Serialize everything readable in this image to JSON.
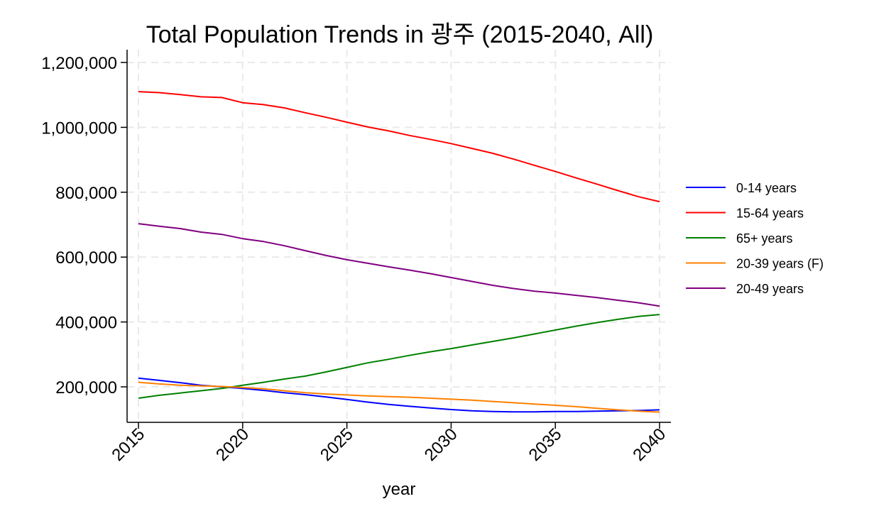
{
  "chart_data": {
    "type": "line",
    "title": "Total Population Trends in 광주 (2015-2040, All)",
    "xlabel": "year",
    "ylabel": "",
    "xlim": [
      2015,
      2040
    ],
    "ylim": [
      100000,
      1230000
    ],
    "xticks": [
      2015,
      2020,
      2025,
      2030,
      2035,
      2040
    ],
    "xtick_labels": [
      "2015",
      "2020",
      "2025",
      "2030",
      "2035",
      "2040"
    ],
    "yticks": [
      200000,
      400000,
      600000,
      800000,
      1000000,
      1200000
    ],
    "ytick_labels": [
      "200,000",
      "400,000",
      "600,000",
      "800,000",
      "1,000,000",
      "1,200,000"
    ],
    "grid": true,
    "legend_position": "right",
    "x": [
      2015,
      2016,
      2017,
      2018,
      2019,
      2020,
      2021,
      2022,
      2023,
      2024,
      2025,
      2026,
      2027,
      2028,
      2029,
      2030,
      2031,
      2032,
      2033,
      2034,
      2035,
      2036,
      2037,
      2038,
      2039,
      2040
    ],
    "series": [
      {
        "name": "0-14 years",
        "color": "#0000ff",
        "values": [
          227000,
          220000,
          213000,
          205000,
          200000,
          195000,
          189000,
          182000,
          176000,
          169000,
          161000,
          153000,
          146000,
          140000,
          135000,
          130000,
          126000,
          124000,
          123000,
          123000,
          124000,
          124000,
          125000,
          126000,
          127000,
          129000
        ]
      },
      {
        "name": "15-64 years",
        "color": "#ff0000",
        "values": [
          1110000,
          1107000,
          1101000,
          1094000,
          1092000,
          1076000,
          1070000,
          1060000,
          1045000,
          1031000,
          1016000,
          1001000,
          989000,
          975000,
          963000,
          950000,
          935000,
          920000,
          902000,
          883000,
          864000,
          844000,
          825000,
          805000,
          786000,
          771000
        ]
      },
      {
        "name": "65+ years",
        "color": "#008000",
        "values": [
          165000,
          174000,
          181000,
          188000,
          195000,
          205000,
          214000,
          224000,
          233000,
          246000,
          260000,
          274000,
          285000,
          297000,
          308000,
          318000,
          329000,
          340000,
          351000,
          363000,
          375000,
          387000,
          398000,
          408000,
          417000,
          423000
        ]
      },
      {
        "name": "20-39 years (F)",
        "color": "#ff8000",
        "values": [
          214000,
          209000,
          205000,
          203000,
          201000,
          198000,
          194000,
          188000,
          182000,
          178000,
          175000,
          172000,
          170000,
          168000,
          165000,
          162000,
          159000,
          155000,
          151000,
          147000,
          143000,
          139000,
          134000,
          129000,
          125000,
          122000
        ]
      },
      {
        "name": "20-49 years",
        "color": "#800080",
        "values": [
          703000,
          695000,
          688000,
          677000,
          670000,
          657000,
          648000,
          635000,
          620000,
          605000,
          592000,
          581000,
          570000,
          560000,
          549000,
          537000,
          525000,
          513000,
          503000,
          495000,
          489000,
          482000,
          475000,
          467000,
          459000,
          449000
        ]
      }
    ]
  }
}
